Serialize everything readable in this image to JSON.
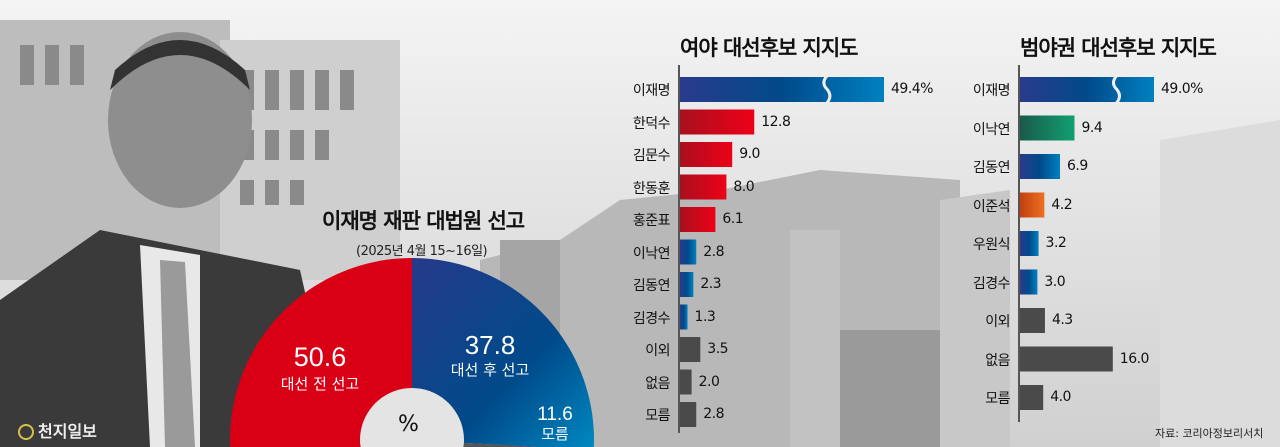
{
  "publisher": "천지일보",
  "source": "자료: 코리아정보리서치",
  "chart_data": [
    {
      "type": "pie",
      "title": "이재명 재판 대법원 선고",
      "subtitle": "(2025년 4월 15~16일)",
      "unit": "%",
      "slices": [
        {
          "label": "대선 전 선고",
          "value": 50.6,
          "color": "#d90016"
        },
        {
          "label": "대선 후 선고",
          "value": 37.8,
          "color": "#1f3e8c"
        },
        {
          "label": "모름",
          "value": 11.6,
          "color": "#555555"
        }
      ]
    },
    {
      "type": "bar",
      "orientation": "horizontal",
      "title": "여야 대선후보 지지도",
      "unit": "%",
      "axis_break_on_first": true,
      "categories": [
        "이재명",
        "한덕수",
        "김문수",
        "한동훈",
        "홍준표",
        "이낙연",
        "김동연",
        "김경수",
        "이외",
        "없음",
        "모름"
      ],
      "values": [
        49.4,
        12.8,
        9.0,
        8.0,
        6.1,
        2.8,
        2.3,
        1.3,
        3.5,
        2.0,
        2.8
      ],
      "value_labels": [
        "49.4%",
        "12.8",
        "9.0",
        "8.0",
        "6.1",
        "2.8",
        "2.3",
        "1.3",
        "3.5",
        "2.0",
        "2.8"
      ],
      "colors": [
        "blue",
        "red",
        "red",
        "red",
        "red",
        "blue",
        "blue",
        "blue",
        "gray",
        "gray",
        "gray"
      ]
    },
    {
      "type": "bar",
      "orientation": "horizontal",
      "title": "범야권 대선후보 지지도",
      "unit": "%",
      "axis_break_on_first": true,
      "categories": [
        "이재명",
        "이낙연",
        "김동연",
        "이준석",
        "우원식",
        "김경수",
        "이외",
        "없음",
        "모름"
      ],
      "values": [
        49.0,
        9.4,
        6.9,
        4.2,
        3.2,
        3.0,
        4.3,
        16.0,
        4.0
      ],
      "value_labels": [
        "49.0%",
        "9.4",
        "6.9",
        "4.2",
        "3.2",
        "3.0",
        "4.3",
        "16.0",
        "4.0"
      ],
      "colors": [
        "blue",
        "green",
        "blue",
        "orange",
        "blue",
        "blue",
        "gray",
        "gray",
        "gray"
      ]
    }
  ],
  "palette": {
    "red": "#d90016",
    "blue": "#1e4f9a",
    "green": "#0f7a5a",
    "orange": "#e06010",
    "gray": "#4a4a4a"
  }
}
